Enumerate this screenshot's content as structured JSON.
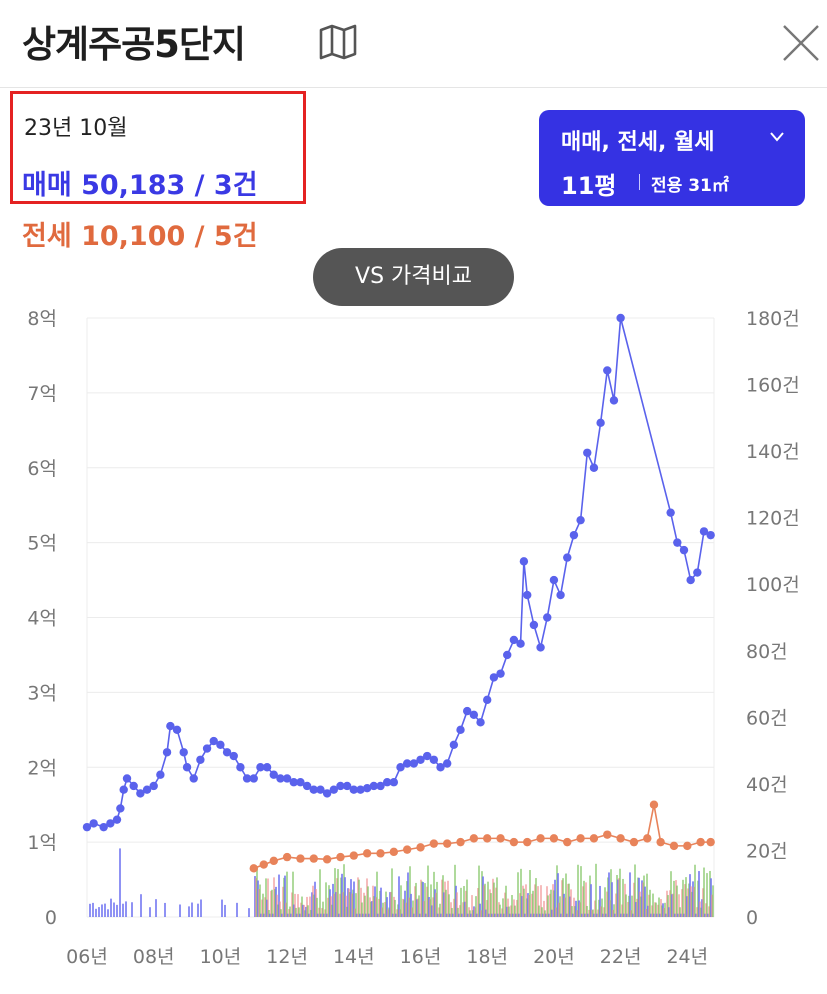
{
  "header": {
    "title": "상계주공5단지",
    "map_icon": "map-icon",
    "close_icon": "close-icon"
  },
  "info": {
    "date": "23년 10월",
    "sale": "매매 50,183 / 3건",
    "jeonse": "전세 10,100 / 5건"
  },
  "filter": {
    "types": "매매, 전세, 월세",
    "size": "11평",
    "area": "전용 31㎡"
  },
  "compare_button": "VS 가격비교",
  "colors": {
    "sale": "#5a62ec",
    "jeonse": "#e8835a",
    "monthly": "#6dbb4a",
    "accent": "#3532e3",
    "highlight_border": "#e42222"
  },
  "chart_data": {
    "type": "line",
    "title": "",
    "xlabel": "",
    "x_ticks": [
      "06년",
      "08년",
      "10년",
      "12년",
      "14년",
      "16년",
      "18년",
      "20년",
      "22년",
      "24년"
    ],
    "x_range": [
      2006.0,
      2024.8
    ],
    "y_left_ticks": [
      "0",
      "1억",
      "2억",
      "3억",
      "4억",
      "5억",
      "6억",
      "7억",
      "8억"
    ],
    "y_left_range": [
      0,
      8
    ],
    "y_left_unit": "억",
    "y_right_ticks": [
      "0",
      "20건",
      "40건",
      "60건",
      "80건",
      "100건",
      "120건",
      "140건",
      "160건",
      "180건"
    ],
    "y_right_range": [
      0,
      180
    ],
    "grid": true,
    "series": [
      {
        "kind": "sale_price",
        "color": "#5a62ec",
        "points": [
          [
            2006.0,
            1.2
          ],
          [
            2006.2,
            1.25
          ],
          [
            2006.5,
            1.2
          ],
          [
            2006.7,
            1.25
          ],
          [
            2006.9,
            1.3
          ],
          [
            2007.0,
            1.45
          ],
          [
            2007.1,
            1.7
          ],
          [
            2007.2,
            1.85
          ],
          [
            2007.4,
            1.75
          ],
          [
            2007.6,
            1.65
          ],
          [
            2007.8,
            1.7
          ],
          [
            2008.0,
            1.75
          ],
          [
            2008.2,
            1.9
          ],
          [
            2008.4,
            2.2
          ],
          [
            2008.5,
            2.55
          ],
          [
            2008.7,
            2.5
          ],
          [
            2008.9,
            2.2
          ],
          [
            2009.0,
            2.0
          ],
          [
            2009.2,
            1.85
          ],
          [
            2009.4,
            2.1
          ],
          [
            2009.6,
            2.25
          ],
          [
            2009.8,
            2.35
          ],
          [
            2010.0,
            2.3
          ],
          [
            2010.2,
            2.2
          ],
          [
            2010.4,
            2.15
          ],
          [
            2010.6,
            2.0
          ],
          [
            2010.8,
            1.85
          ],
          [
            2011.0,
            1.85
          ],
          [
            2011.2,
            2.0
          ],
          [
            2011.4,
            2.0
          ],
          [
            2011.6,
            1.9
          ],
          [
            2011.8,
            1.85
          ],
          [
            2012.0,
            1.85
          ],
          [
            2012.2,
            1.8
          ],
          [
            2012.4,
            1.8
          ],
          [
            2012.6,
            1.75
          ],
          [
            2012.8,
            1.7
          ],
          [
            2013.0,
            1.7
          ],
          [
            2013.2,
            1.65
          ],
          [
            2013.4,
            1.7
          ],
          [
            2013.6,
            1.75
          ],
          [
            2013.8,
            1.75
          ],
          [
            2014.0,
            1.7
          ],
          [
            2014.2,
            1.7
          ],
          [
            2014.4,
            1.72
          ],
          [
            2014.6,
            1.75
          ],
          [
            2014.8,
            1.75
          ],
          [
            2015.0,
            1.8
          ],
          [
            2015.2,
            1.8
          ],
          [
            2015.4,
            2.0
          ],
          [
            2015.6,
            2.05
          ],
          [
            2015.8,
            2.05
          ],
          [
            2016.0,
            2.1
          ],
          [
            2016.2,
            2.15
          ],
          [
            2016.4,
            2.1
          ],
          [
            2016.6,
            2.0
          ],
          [
            2016.8,
            2.05
          ],
          [
            2017.0,
            2.3
          ],
          [
            2017.2,
            2.5
          ],
          [
            2017.4,
            2.75
          ],
          [
            2017.6,
            2.7
          ],
          [
            2017.8,
            2.6
          ],
          [
            2018.0,
            2.9
          ],
          [
            2018.2,
            3.2
          ],
          [
            2018.4,
            3.25
          ],
          [
            2018.6,
            3.5
          ],
          [
            2018.8,
            3.7
          ],
          [
            2019.0,
            3.65
          ],
          [
            2019.1,
            4.75
          ],
          [
            2019.2,
            4.3
          ],
          [
            2019.4,
            3.9
          ],
          [
            2019.6,
            3.6
          ],
          [
            2019.8,
            4.0
          ],
          [
            2020.0,
            4.5
          ],
          [
            2020.2,
            4.3
          ],
          [
            2020.4,
            4.8
          ],
          [
            2020.6,
            5.1
          ],
          [
            2020.8,
            5.3
          ],
          [
            2021.0,
            6.2
          ],
          [
            2021.2,
            6.0
          ],
          [
            2021.4,
            6.6
          ],
          [
            2021.6,
            7.3
          ],
          [
            2021.8,
            6.9
          ],
          [
            2022.0,
            8.0
          ],
          [
            2023.5,
            5.4
          ],
          [
            2023.7,
            5.0
          ],
          [
            2023.9,
            4.9
          ],
          [
            2024.1,
            4.5
          ],
          [
            2024.3,
            4.6
          ],
          [
            2024.5,
            5.15
          ],
          [
            2024.7,
            5.1
          ]
        ]
      },
      {
        "kind": "jeonse_price",
        "color": "#e8835a",
        "points": [
          [
            2011.0,
            0.65
          ],
          [
            2011.3,
            0.7
          ],
          [
            2011.6,
            0.75
          ],
          [
            2012.0,
            0.8
          ],
          [
            2012.4,
            0.78
          ],
          [
            2012.8,
            0.78
          ],
          [
            2013.2,
            0.77
          ],
          [
            2013.6,
            0.8
          ],
          [
            2014.0,
            0.82
          ],
          [
            2014.4,
            0.85
          ],
          [
            2014.8,
            0.85
          ],
          [
            2015.2,
            0.87
          ],
          [
            2015.6,
            0.9
          ],
          [
            2016.0,
            0.93
          ],
          [
            2016.4,
            0.98
          ],
          [
            2016.8,
            0.98
          ],
          [
            2017.2,
            1.0
          ],
          [
            2017.6,
            1.05
          ],
          [
            2018.0,
            1.05
          ],
          [
            2018.4,
            1.05
          ],
          [
            2018.8,
            1.0
          ],
          [
            2019.2,
            1.0
          ],
          [
            2019.6,
            1.05
          ],
          [
            2020.0,
            1.05
          ],
          [
            2020.4,
            1.0
          ],
          [
            2020.8,
            1.05
          ],
          [
            2021.2,
            1.05
          ],
          [
            2021.6,
            1.1
          ],
          [
            2022.0,
            1.05
          ],
          [
            2022.4,
            1.0
          ],
          [
            2022.8,
            1.05
          ],
          [
            2023.0,
            1.5
          ],
          [
            2023.2,
            1.0
          ],
          [
            2023.6,
            0.95
          ],
          [
            2024.0,
            0.95
          ],
          [
            2024.4,
            1.0
          ],
          [
            2024.7,
            1.0
          ]
        ]
      }
    ]
  }
}
